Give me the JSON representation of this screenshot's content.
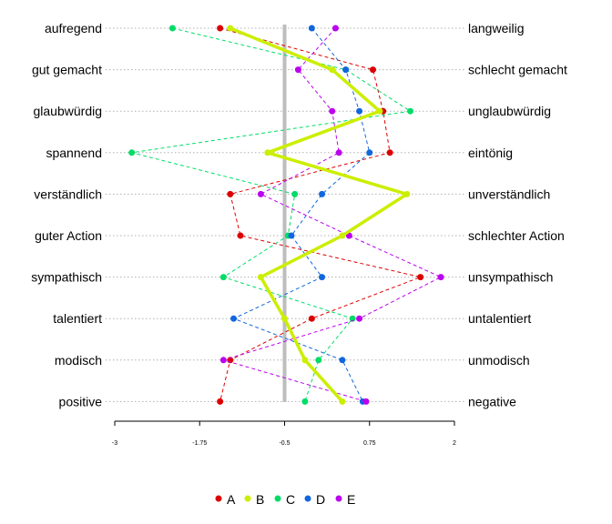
{
  "chart_data": {
    "type": "line",
    "orientation": "horizontal-profile",
    "left_labels": [
      "aufregend",
      "gut gemacht",
      "glaubwürdig",
      "spannend",
      "verständlich",
      "guter Action",
      "sympathisch",
      "talentiert",
      "modisch",
      "positive"
    ],
    "right_labels": [
      "langweilig",
      "schlecht gemacht",
      "unglaubwürdig",
      "eintönig",
      "unverständlich",
      "schlechter Action",
      "unsympathisch",
      "untalentiert",
      "unmodisch",
      "negative"
    ],
    "xlim": [
      -3,
      2
    ],
    "x_ticks": [
      "-3",
      "-1.75",
      "-0.5",
      "0.75",
      "2"
    ],
    "reference_line": -0.5,
    "series": [
      {
        "name": "A",
        "color": "#dd0000",
        "style": "dashed",
        "values": [
          -1.45,
          0.8,
          0.95,
          1.05,
          -1.3,
          -1.15,
          1.5,
          -0.1,
          -1.3,
          -1.45
        ]
      },
      {
        "name": "B",
        "color": "#ccee00",
        "style": "solid-thick",
        "values": [
          -1.3,
          0.2,
          0.9,
          -0.75,
          1.3,
          0.35,
          -0.85,
          -0.5,
          -0.2,
          0.35
        ]
      },
      {
        "name": "C",
        "color": "#00dd66",
        "style": "dashed",
        "values": [
          -2.15,
          0.4,
          1.35,
          -2.75,
          -0.35,
          -0.45,
          -1.4,
          0.5,
          0.0,
          -0.2
        ]
      },
      {
        "name": "D",
        "color": "#1166dd",
        "style": "dashed",
        "values": [
          -0.1,
          0.4,
          0.6,
          0.75,
          0.05,
          -0.4,
          0.05,
          -1.25,
          0.35,
          0.65
        ]
      },
      {
        "name": "E",
        "color": "#bb00ee",
        "style": "dashed",
        "values": [
          0.25,
          -0.3,
          0.2,
          0.3,
          -0.85,
          0.45,
          1.8,
          0.6,
          -1.4,
          0.7
        ]
      }
    ],
    "legend_position": "bottom",
    "grid": "horizontal dotted"
  }
}
